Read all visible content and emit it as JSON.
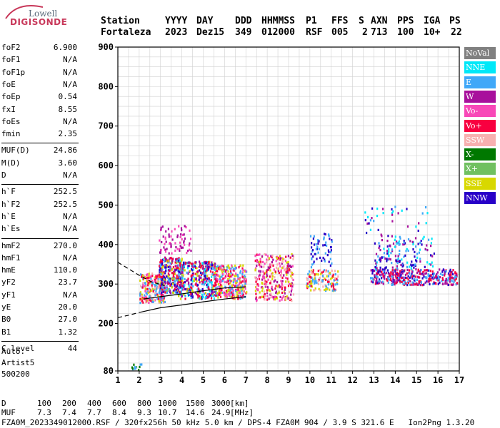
{
  "logo": {
    "lowell": "Lowell",
    "digisonde": "DIGISONDE"
  },
  "header": {
    "labels": [
      "Station",
      "YYYY",
      "DAY",
      "DDD",
      "HHMMSS",
      "P1",
      "FFS",
      "S",
      "AXN",
      "PPS",
      "IGA",
      "PS"
    ],
    "values": [
      "Fortaleza",
      "2023",
      "Dez15",
      "349",
      "012000",
      "RSF",
      "005",
      "2",
      "713",
      "100",
      "10+",
      "22"
    ]
  },
  "params": [
    {
      "name": "foF2",
      "value": "6.900"
    },
    {
      "name": "foF1",
      "value": "N/A"
    },
    {
      "name": "foF1p",
      "value": "N/A"
    },
    {
      "name": "foE",
      "value": "N/A"
    },
    {
      "name": "foEp",
      "value": "0.54"
    },
    {
      "name": "fxI",
      "value": "8.55"
    },
    {
      "name": "foEs",
      "value": "N/A"
    },
    {
      "name": "fmin",
      "value": "2.35"
    },
    {
      "name": "MUF(D)",
      "value": "24.86"
    },
    {
      "name": "M(D)",
      "value": "3.60"
    },
    {
      "name": "D",
      "value": "N/A"
    },
    {
      "name": "h`F",
      "value": "252.5"
    },
    {
      "name": "h`F2",
      "value": "252.5"
    },
    {
      "name": "h`E",
      "value": "N/A"
    },
    {
      "name": "h`Es",
      "value": "N/A"
    },
    {
      "name": "hmF2",
      "value": "270.0"
    },
    {
      "name": "hmF1",
      "value": "N/A"
    },
    {
      "name": "hmE",
      "value": "110.0"
    },
    {
      "name": "yF2",
      "value": "23.7"
    },
    {
      "name": "yF1",
      "value": "N/A"
    },
    {
      "name": "yE",
      "value": "20.0"
    },
    {
      "name": "B0",
      "value": "27.0"
    },
    {
      "name": "B1",
      "value": "1.32"
    },
    {
      "name": "C-level",
      "value": "44"
    }
  ],
  "autoscaling": {
    "label": "Auto:",
    "artist": "Artist5",
    "code": "500200"
  },
  "legend": [
    {
      "label": "NoVal",
      "color": "#808080"
    },
    {
      "label": "NNE",
      "color": "#00e8f8"
    },
    {
      "label": "E",
      "color": "#40a8f8"
    },
    {
      "label": "W",
      "color": "#a8109c"
    },
    {
      "label": "Vo-",
      "color": "#f848b8"
    },
    {
      "label": "Vo+",
      "color": "#f80040"
    },
    {
      "label": "SSW",
      "color": "#f8b0b0"
    },
    {
      "label": "X-",
      "color": "#007800"
    },
    {
      "label": "X+",
      "color": "#70c060"
    },
    {
      "label": "SSE",
      "color": "#d8d800"
    },
    {
      "label": "NNW",
      "color": "#2800c8"
    }
  ],
  "footer": {
    "d_label": "D",
    "d_values": [
      "100",
      "200",
      "400",
      "600",
      "800",
      "1000",
      "1500",
      "3000"
    ],
    "d_unit": "[km]",
    "muf_label": "MUF",
    "muf_values": [
      "7.3",
      "7.4",
      "7.7",
      "8.4",
      "9.3",
      "10.7",
      "14.6",
      "24.9"
    ],
    "muf_unit": "[MHz]",
    "info": "FZA0M_2023349012000.RSF / 320fx256h 50 kHz 5.0 km / DPS-4 FZA0M 904 / 3.9 S 321.6 E   Ion2Png 1.3.20"
  },
  "chart_data": {
    "type": "scatter",
    "xlim": [
      1,
      17
    ],
    "ylim": [
      80,
      900
    ],
    "x_ticks": [
      1,
      2,
      3,
      4,
      5,
      6,
      7,
      8,
      9,
      10,
      11,
      12,
      13,
      14,
      15,
      16,
      17
    ],
    "y_ticks": [
      80,
      200,
      300,
      400,
      500,
      600,
      700,
      800,
      900
    ],
    "grid": true,
    "traces": [
      {
        "name": "",
        "style": "solid",
        "x": [
          2.0,
          3.0,
          4.0,
          5.0,
          6.0,
          7.0
        ],
        "y": [
          228,
          240,
          247,
          255,
          262,
          268
        ]
      },
      {
        "name": "",
        "style": "dashed",
        "x": [
          1.0,
          2.0,
          2.6,
          3.2
        ],
        "y": [
          355,
          322,
          305,
          296
        ]
      },
      {
        "name": "",
        "style": "dashed",
        "x": [
          1.0,
          1.5,
          2.0
        ],
        "y": [
          215,
          221,
          228
        ]
      },
      {
        "name": "",
        "style": "solid",
        "x": [
          2.2,
          3.0,
          4.0,
          5.0,
          6.0,
          7.0
        ],
        "y": [
          262,
          268,
          275,
          283,
          290,
          293
        ]
      }
    ],
    "echo_clusters": [
      {
        "x": [
          2.0,
          3.2
        ],
        "y": [
          255,
          330
        ],
        "n": 260,
        "colors": [
          "#f80040",
          "#d8d800",
          "#40a8f8",
          "#f848b8",
          "#f8b0b0"
        ]
      },
      {
        "x": [
          2.9,
          4.0
        ],
        "y": [
          280,
          370
        ],
        "n": 300,
        "colors": [
          "#40a8f8",
          "#f80040",
          "#d8d800",
          "#a8109c",
          "#2800c8"
        ]
      },
      {
        "x": [
          3.8,
          5.6
        ],
        "y": [
          265,
          360
        ],
        "n": 380,
        "colors": [
          "#f80040",
          "#d8d800",
          "#40a8f8",
          "#a8109c",
          "#00e8f8",
          "#2800c8"
        ]
      },
      {
        "x": [
          5.5,
          7.0
        ],
        "y": [
          265,
          350
        ],
        "n": 300,
        "colors": [
          "#d8d800",
          "#f80040",
          "#40a8f8",
          "#f848b8"
        ]
      },
      {
        "x": [
          2.9,
          4.4
        ],
        "y": [
          380,
          450
        ],
        "n": 70,
        "colors": [
          "#a8109c",
          "#f848b8"
        ]
      },
      {
        "x": [
          7.4,
          9.2
        ],
        "y": [
          260,
          380
        ],
        "n": 300,
        "colors": [
          "#f80040",
          "#d8d800",
          "#f848b8",
          "#a8109c",
          "#f8b0b0"
        ]
      },
      {
        "x": [
          9.8,
          11.3
        ],
        "y": [
          285,
          340
        ],
        "n": 130,
        "colors": [
          "#f80040",
          "#f8b0b0",
          "#d8d800",
          "#40a8f8"
        ]
      },
      {
        "x": [
          10.0,
          11.0
        ],
        "y": [
          345,
          430
        ],
        "n": 60,
        "colors": [
          "#2800c8",
          "#40a8f8"
        ]
      },
      {
        "x": [
          12.8,
          16.9
        ],
        "y": [
          300,
          340
        ],
        "n": 380,
        "colors": [
          "#a8109c",
          "#40a8f8",
          "#2800c8",
          "#f80040"
        ]
      },
      {
        "x": [
          13.0,
          15.8
        ],
        "y": [
          340,
          420
        ],
        "n": 150,
        "colors": [
          "#40a8f8",
          "#2800c8",
          "#a8109c",
          "#00e8f8"
        ]
      },
      {
        "x": [
          12.5,
          15.5
        ],
        "y": [
          420,
          500
        ],
        "n": 40,
        "colors": [
          "#40a8f8",
          "#00e8f8",
          "#2800c8",
          "#a8109c"
        ]
      },
      {
        "x": [
          1.6,
          2.1
        ],
        "y": [
          85,
          100
        ],
        "n": 12,
        "colors": [
          "#007800",
          "#40a8f8",
          "#70c060"
        ]
      }
    ]
  }
}
